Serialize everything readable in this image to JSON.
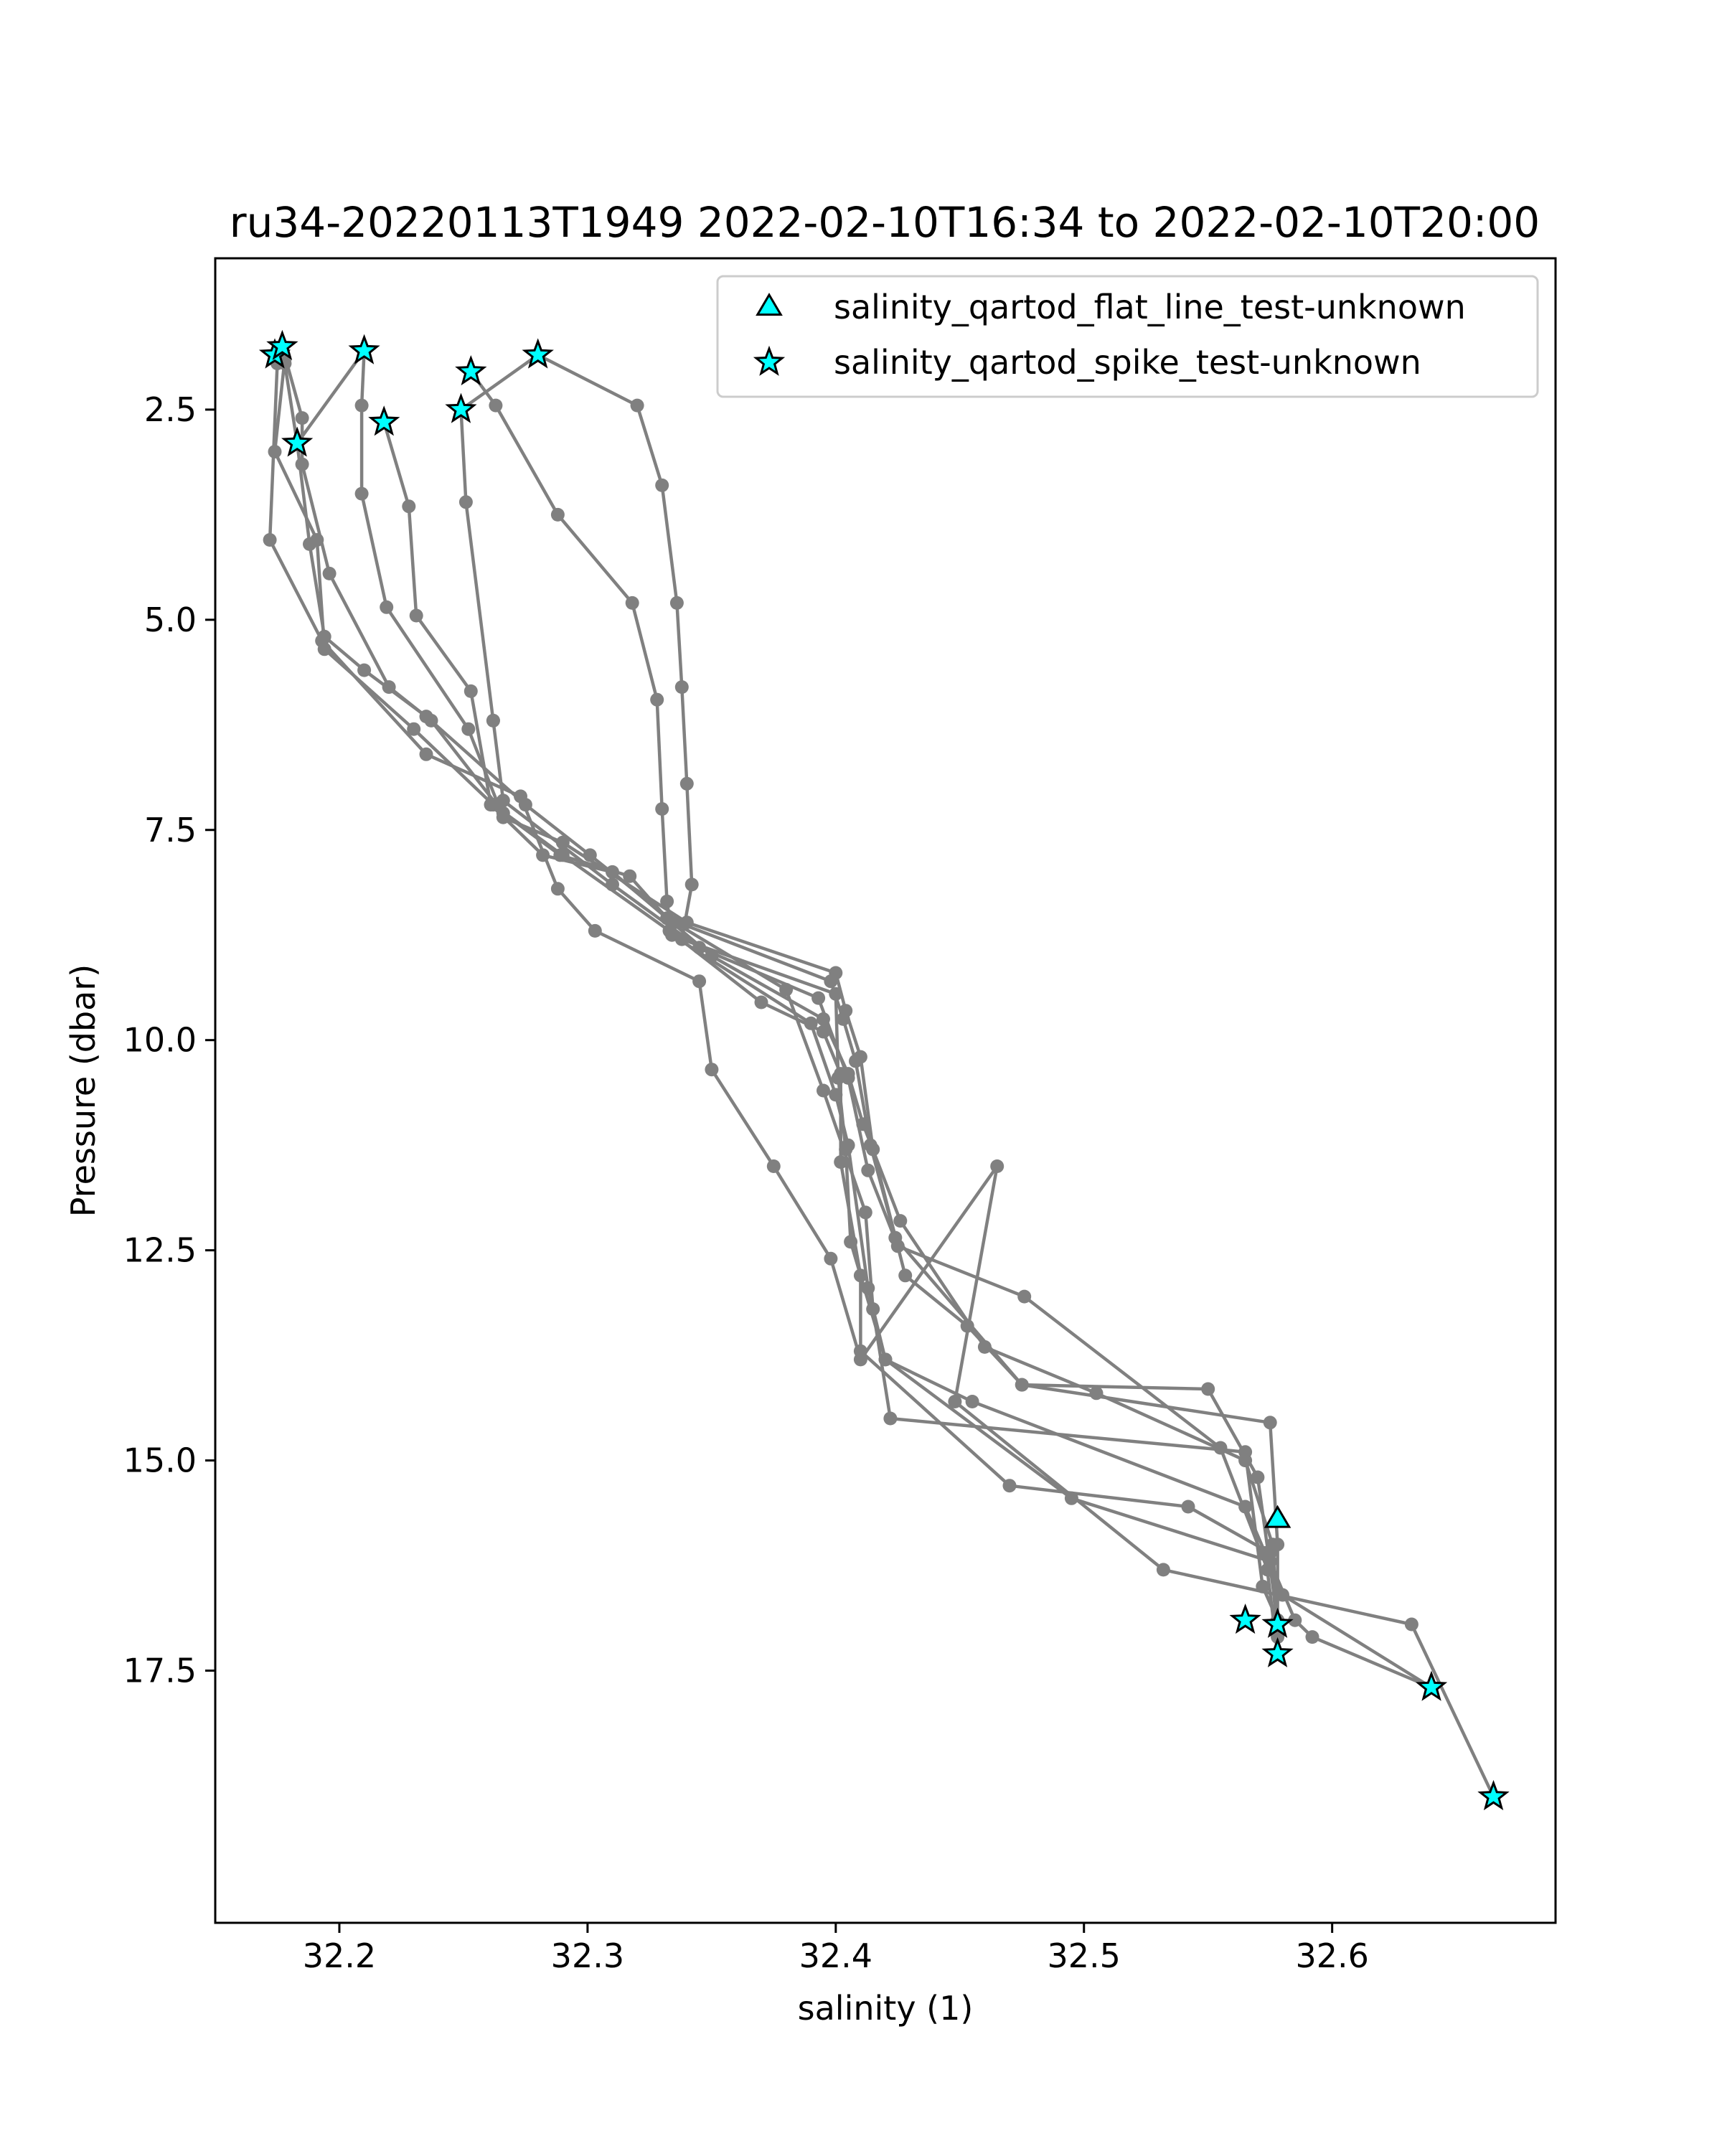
{
  "chart_data": {
    "type": "scatter",
    "title": "ru34-20220113T1949 2022-02-10T16:34 to 2022-02-10T20:00",
    "xlabel": "salinity (1)",
    "ylabel": "Pressure (dbar)",
    "xlim": [
      32.15,
      32.69
    ],
    "ylim": [
      20.5,
      0.7
    ],
    "y_inverted": true,
    "xticks": [
      "32.2",
      "32.3",
      "32.4",
      "32.5",
      "32.6"
    ],
    "yticks": [
      "2.5",
      "5.0",
      "7.5",
      "10.0",
      "12.5",
      "15.0",
      "17.5"
    ],
    "grid": false,
    "legend_position": "top-right",
    "colors": {
      "profile_line": "#808080",
      "profile_marker": "#808080",
      "flag_fill": "#00ffff",
      "flag_edge": "#000000",
      "axes": "#000000"
    },
    "legend": [
      {
        "label": "salinity_qartod_flat_line_test-unknown",
        "marker": "triangle"
      },
      {
        "label": "salinity_qartod_spike_test-unknown",
        "marker": "star"
      }
    ],
    "series": [
      {
        "points": [
          [
            32.175,
            1.9
          ],
          [
            32.178,
            1.95
          ],
          [
            32.183,
            2.9
          ],
          [
            32.188,
            4.1
          ],
          [
            32.194,
            5.2
          ],
          [
            32.21,
            5.6
          ],
          [
            32.235,
            6.15
          ],
          [
            32.275,
            7.2
          ],
          [
            32.301,
            7.8
          ],
          [
            32.335,
            8.6
          ],
          [
            32.38,
            9.4
          ],
          [
            32.395,
            10.6
          ],
          [
            32.412,
            12.05
          ],
          [
            32.415,
            13.2
          ],
          [
            32.422,
            14.5
          ],
          [
            32.565,
            14.9
          ],
          [
            32.572,
            16.5
          ],
          [
            32.578,
            16.9
          ]
        ]
      },
      {
        "points": [
          [
            32.177,
            1.75
          ],
          [
            32.185,
            2.6
          ],
          [
            32.185,
            3.15
          ],
          [
            32.196,
            4.45
          ],
          [
            32.22,
            5.8
          ],
          [
            32.237,
            6.2
          ],
          [
            32.266,
            7.3
          ],
          [
            32.289,
            7.8
          ],
          [
            32.317,
            8.05
          ],
          [
            32.332,
            8.55
          ],
          [
            32.398,
            9.3
          ],
          [
            32.403,
            9.75
          ],
          [
            32.408,
            10.25
          ],
          [
            32.414,
            11.25
          ],
          [
            32.424,
            12.35
          ],
          [
            32.475,
            14.1
          ],
          [
            32.55,
            14.15
          ],
          [
            32.57,
            15.2
          ],
          [
            32.578,
            16.9
          ]
        ]
      },
      {
        "points": [
          [
            32.21,
            1.8
          ],
          [
            32.209,
            2.45
          ],
          [
            32.209,
            3.5
          ],
          [
            32.219,
            4.85
          ],
          [
            32.252,
            6.3
          ],
          [
            32.266,
            7.35
          ],
          [
            32.29,
            7.65
          ],
          [
            32.34,
            8.6
          ],
          [
            32.4,
            9.2
          ],
          [
            32.404,
            9.65
          ],
          [
            32.41,
            10.2
          ],
          [
            32.415,
            11.3
          ],
          [
            32.428,
            12.8
          ],
          [
            32.453,
            13.4
          ],
          [
            32.475,
            14.1
          ],
          [
            32.575,
            14.55
          ],
          [
            32.578,
            16.0
          ],
          [
            32.578,
            17.3
          ]
        ]
      },
      {
        "points": [
          [
            32.218,
            2.65
          ],
          [
            32.228,
            3.65
          ],
          [
            32.231,
            4.95
          ],
          [
            32.253,
            5.85
          ],
          [
            32.261,
            7.2
          ],
          [
            32.282,
            7.8
          ],
          [
            32.31,
            8.0
          ],
          [
            32.35,
            9.0
          ],
          [
            32.395,
            9.75
          ],
          [
            32.405,
            10.4
          ],
          [
            32.411,
            11.0
          ],
          [
            32.426,
            12.15
          ],
          [
            32.46,
            13.65
          ],
          [
            32.505,
            14.2
          ],
          [
            32.565,
            15.0
          ],
          [
            32.576,
            16.0
          ],
          [
            32.578,
            16.9
          ]
        ]
      },
      {
        "points": [
          [
            32.249,
            2.5
          ],
          [
            32.251,
            3.6
          ],
          [
            32.262,
            6.2
          ],
          [
            32.262,
            6.2
          ],
          [
            32.266,
            7.15
          ],
          [
            32.31,
            8.15
          ],
          [
            32.345,
            8.9
          ],
          [
            32.393,
            9.5
          ],
          [
            32.405,
            10.45
          ],
          [
            32.413,
            11.55
          ],
          [
            32.425,
            12.45
          ],
          [
            32.476,
            13.05
          ],
          [
            32.555,
            14.85
          ],
          [
            32.574,
            16.3
          ],
          [
            32.58,
            16.6
          ],
          [
            32.64,
            17.7
          ]
        ]
      },
      {
        "points": [
          [
            32.28,
            1.85
          ],
          [
            32.32,
            2.45
          ],
          [
            32.33,
            3.4
          ],
          [
            32.336,
            4.8
          ],
          [
            32.338,
            5.8
          ],
          [
            32.34,
            6.95
          ],
          [
            32.342,
            8.15
          ],
          [
            32.338,
            8.8
          ],
          [
            32.4,
            9.45
          ],
          [
            32.401,
            10.45
          ],
          [
            32.404,
            11.3
          ],
          [
            32.406,
            12.4
          ],
          [
            32.42,
            13.8
          ],
          [
            32.495,
            15.45
          ],
          [
            32.575,
            16.2
          ],
          [
            32.585,
            16.9
          ],
          [
            32.592,
            17.1
          ],
          [
            32.64,
            17.7
          ]
        ]
      },
      {
        "points": [
          [
            32.253,
            2.05
          ],
          [
            32.263,
            2.45
          ],
          [
            32.288,
            3.75
          ],
          [
            32.318,
            4.8
          ],
          [
            32.328,
            5.95
          ],
          [
            32.33,
            7.25
          ],
          [
            32.332,
            8.35
          ],
          [
            32.334,
            8.75
          ],
          [
            32.39,
            9.8
          ],
          [
            32.4,
            10.65
          ],
          [
            32.405,
            11.25
          ],
          [
            32.413,
            12.95
          ],
          [
            32.42,
            13.8
          ],
          [
            32.455,
            14.3
          ],
          [
            32.565,
            15.55
          ],
          [
            32.573,
            16.1
          ],
          [
            32.578,
            17.3
          ]
        ]
      },
      {
        "points": [
          [
            32.28,
            1.85
          ],
          [
            32.249,
            2.5
          ]
        ]
      },
      {
        "points": [
          [
            32.178,
            1.9
          ],
          [
            32.174,
            3.0
          ],
          [
            32.191,
            4.05
          ],
          [
            32.194,
            5.35
          ],
          [
            32.23,
            6.3
          ],
          [
            32.262,
            7.2
          ],
          [
            32.29,
            7.8
          ],
          [
            32.333,
            8.7
          ],
          [
            32.37,
            9.55
          ],
          [
            32.395,
            9.9
          ],
          [
            32.402,
            10.4
          ],
          [
            32.402,
            11.45
          ],
          [
            32.41,
            12.8
          ],
          [
            32.41,
            13.7
          ],
          [
            32.47,
            15.3
          ],
          [
            32.542,
            15.55
          ],
          [
            32.575,
            16.1
          ],
          [
            32.578,
            17.1
          ]
        ]
      },
      {
        "points": [
          [
            32.175,
            1.95
          ],
          [
            32.172,
            4.05
          ],
          [
            32.193,
            5.25
          ],
          [
            32.235,
            6.6
          ],
          [
            32.273,
            7.1
          ],
          [
            32.288,
            8.2
          ],
          [
            32.303,
            8.7
          ],
          [
            32.345,
            9.3
          ],
          [
            32.35,
            10.35
          ],
          [
            32.375,
            11.5
          ],
          [
            32.398,
            12.6
          ],
          [
            32.41,
            13.8
          ],
          [
            32.465,
            11.5
          ],
          [
            32.448,
            14.3
          ],
          [
            32.532,
            16.3
          ],
          [
            32.632,
            16.95
          ],
          [
            32.665,
            19.0
          ]
        ]
      },
      {
        "points": [
          [
            32.183,
            2.9
          ],
          [
            32.21,
            1.8
          ]
        ]
      }
    ],
    "flags_flat_line": [
      [
        32.578,
        15.7
      ]
    ],
    "flags_spike": [
      [
        32.174,
        1.85
      ],
      [
        32.177,
        1.75
      ],
      [
        32.21,
        1.8
      ],
      [
        32.28,
        1.85
      ],
      [
        32.253,
        2.05
      ],
      [
        32.249,
        2.5
      ],
      [
        32.218,
        2.65
      ],
      [
        32.183,
        2.9
      ],
      [
        32.565,
        16.9
      ],
      [
        32.578,
        16.95
      ],
      [
        32.578,
        17.3
      ],
      [
        32.64,
        17.7
      ],
      [
        32.665,
        19.0
      ]
    ]
  }
}
